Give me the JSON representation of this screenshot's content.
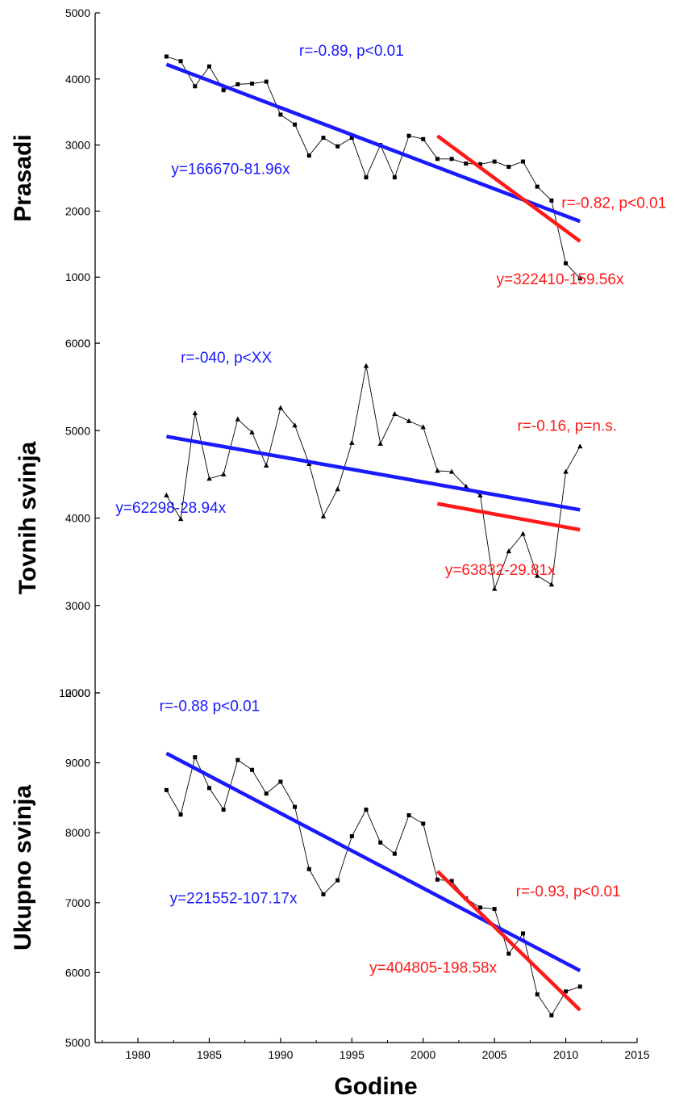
{
  "chart_data": {
    "type": "line",
    "xlabel": "Godine",
    "xlim": [
      1977,
      2015
    ],
    "xticks": [
      1980,
      1985,
      1990,
      1995,
      2000,
      2005,
      2010,
      2015
    ],
    "colors": {
      "data": "#000000",
      "fit_all": "#1a1aff",
      "fit_recent": "#ff1a1a"
    },
    "panels": [
      {
        "ylabel": "Prasadi",
        "ylim": [
          0,
          5000
        ],
        "yticks": [
          0,
          1000,
          2000,
          3000,
          4000,
          5000
        ],
        "marker": "square",
        "x": [
          1982,
          1983,
          1984,
          1985,
          1986,
          1987,
          1988,
          1989,
          1990,
          1991,
          1992,
          1993,
          1994,
          1995,
          1996,
          1997,
          1998,
          1999,
          2000,
          2001,
          2002,
          2003,
          2004,
          2005,
          2006,
          2007,
          2008,
          2009,
          2010,
          2011
        ],
        "y": [
          4340,
          4270,
          3890,
          4190,
          3830,
          3920,
          3930,
          3960,
          3460,
          3310,
          2840,
          3110,
          2980,
          3110,
          2510,
          3000,
          2510,
          3140,
          3090,
          2790,
          2790,
          2720,
          2710,
          2750,
          2670,
          2750,
          2370,
          2160,
          1210,
          980
        ],
        "fits": [
          {
            "color": "blue",
            "x": [
              1982,
              2011
            ],
            "y": [
              4221,
              1844
            ]
          },
          {
            "color": "red",
            "x": [
              2001,
              2011
            ],
            "y": [
              3138,
              1542
            ]
          }
        ],
        "annotations": [
          {
            "text": "r=-0.89, p<0.01",
            "color": "blue"
          },
          {
            "text": "y=166670-81.96x",
            "color": "blue"
          },
          {
            "text": "r=-0.82, p<0.01",
            "color": "red"
          },
          {
            "text": "y=322410-159.56x",
            "color": "red"
          }
        ]
      },
      {
        "ylabel": "Tovnih svinja",
        "ylim": [
          2000,
          6000
        ],
        "yticks": [
          2000,
          3000,
          4000,
          5000,
          6000
        ],
        "marker": "triangle",
        "x": [
          1982,
          1983,
          1984,
          1985,
          1986,
          1987,
          1988,
          1989,
          1990,
          1991,
          1992,
          1993,
          1994,
          1995,
          1996,
          1997,
          1998,
          1999,
          2000,
          2001,
          2002,
          2003,
          2004,
          2005,
          2006,
          2007,
          2008,
          2009,
          2010,
          2011
        ],
        "y": [
          4260,
          3990,
          5200,
          4450,
          4500,
          5130,
          4980,
          4600,
          5260,
          5060,
          4620,
          4020,
          4330,
          4860,
          5740,
          4850,
          5190,
          5110,
          5040,
          4540,
          4530,
          4360,
          4260,
          3190,
          3620,
          3820,
          3340,
          3240,
          4530,
          4820
        ],
        "fits": [
          {
            "color": "blue",
            "x": [
              1982,
              2011
            ],
            "y": [
              4933,
              4094
            ]
          },
          {
            "color": "red",
            "x": [
              2001,
              2011
            ],
            "y": [
              4164,
              3866
            ]
          }
        ],
        "annotations": [
          {
            "text": "r=-040, p<XX",
            "color": "blue"
          },
          {
            "text": "y=62298-28.94x",
            "color": "blue"
          },
          {
            "text": "r=-0.16, p=n.s.",
            "color": "red"
          },
          {
            "text": "y=63832-29.81x",
            "color": "red"
          }
        ]
      },
      {
        "ylabel": "Ukupno svinja",
        "ylim": [
          5000,
          10000
        ],
        "yticks": [
          5000,
          6000,
          7000,
          8000,
          9000,
          10000
        ],
        "marker": "square",
        "x": [
          1982,
          1983,
          1984,
          1985,
          1986,
          1987,
          1988,
          1989,
          1990,
          1991,
          1992,
          1993,
          1994,
          1995,
          1996,
          1997,
          1998,
          1999,
          2000,
          2001,
          2002,
          2003,
          2004,
          2005,
          2006,
          2007,
          2008,
          2009,
          2010,
          2011
        ],
        "y": [
          8610,
          8260,
          9080,
          8640,
          8330,
          9040,
          8900,
          8560,
          8730,
          8370,
          7480,
          7120,
          7320,
          7950,
          8330,
          7860,
          7700,
          8250,
          8130,
          7330,
          7310,
          7060,
          6930,
          6910,
          6270,
          6560,
          5690,
          5390,
          5730,
          5800
        ],
        "fits": [
          {
            "color": "blue",
            "x": [
              1982,
              2011
            ],
            "y": [
              9136,
              6028
            ]
          },
          {
            "color": "red",
            "x": [
              2001,
              2011
            ],
            "y": [
              7449,
              5463
            ]
          }
        ],
        "annotations": [
          {
            "text": "r=-0.88 p<0.01",
            "color": "blue"
          },
          {
            "text": "y=221552-107.17x",
            "color": "blue"
          },
          {
            "text": "r=-0.93, p<0.01",
            "color": "red"
          },
          {
            "text": "y=404805-198.58x",
            "color": "red"
          }
        ]
      }
    ]
  }
}
